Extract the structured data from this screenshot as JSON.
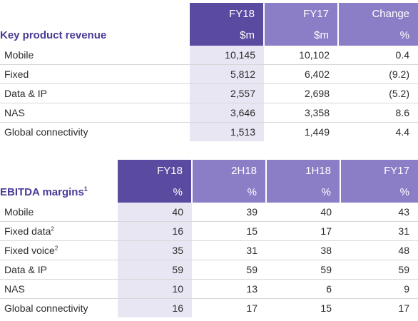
{
  "table1": {
    "title": "Key product revenue",
    "columns": [
      {
        "period": "FY18",
        "unit": "$m"
      },
      {
        "period": "FY17",
        "unit": "$m"
      },
      {
        "period": "Change",
        "unit": "%"
      }
    ],
    "rows": [
      {
        "label": "Mobile",
        "fy18": "10,145",
        "fy17": "10,102",
        "change": "0.4"
      },
      {
        "label": "Fixed",
        "fy18": "5,812",
        "fy17": "6,402",
        "change": "(9.2)"
      },
      {
        "label": "Data & IP",
        "fy18": "2,557",
        "fy17": "2,698",
        "change": "(5.2)"
      },
      {
        "label": "NAS",
        "fy18": "3,646",
        "fy17": "3,358",
        "change": "8.6"
      },
      {
        "label": "Global connectivity",
        "fy18": "1,513",
        "fy17": "1,449",
        "change": "4.4"
      }
    ]
  },
  "table2": {
    "title": "EBITDA margins",
    "title_sup": "1",
    "columns": [
      {
        "period": "FY18",
        "unit": "%"
      },
      {
        "period": "2H18",
        "unit": "%"
      },
      {
        "period": "1H18",
        "unit": "%"
      },
      {
        "period": "FY17",
        "unit": "%"
      }
    ],
    "rows": [
      {
        "label": "Mobile",
        "sup": "",
        "fy18": "40",
        "h2": "39",
        "h1": "40",
        "fy17": "43"
      },
      {
        "label": "Fixed data",
        "sup": "2",
        "fy18": "16",
        "h2": "15",
        "h1": "17",
        "fy17": "31"
      },
      {
        "label": "Fixed voice",
        "sup": "2",
        "fy18": "35",
        "h2": "31",
        "h1": "38",
        "fy17": "48"
      },
      {
        "label": "Data & IP",
        "sup": "",
        "fy18": "59",
        "h2": "59",
        "h1": "59",
        "fy17": "59"
      },
      {
        "label": "NAS",
        "sup": "",
        "fy18": "10",
        "h2": "13",
        "h1": "6",
        "fy17": "9"
      },
      {
        "label": "Global connectivity",
        "sup": "",
        "fy18": "16",
        "h2": "17",
        "h1": "15",
        "fy17": "17"
      }
    ]
  }
}
